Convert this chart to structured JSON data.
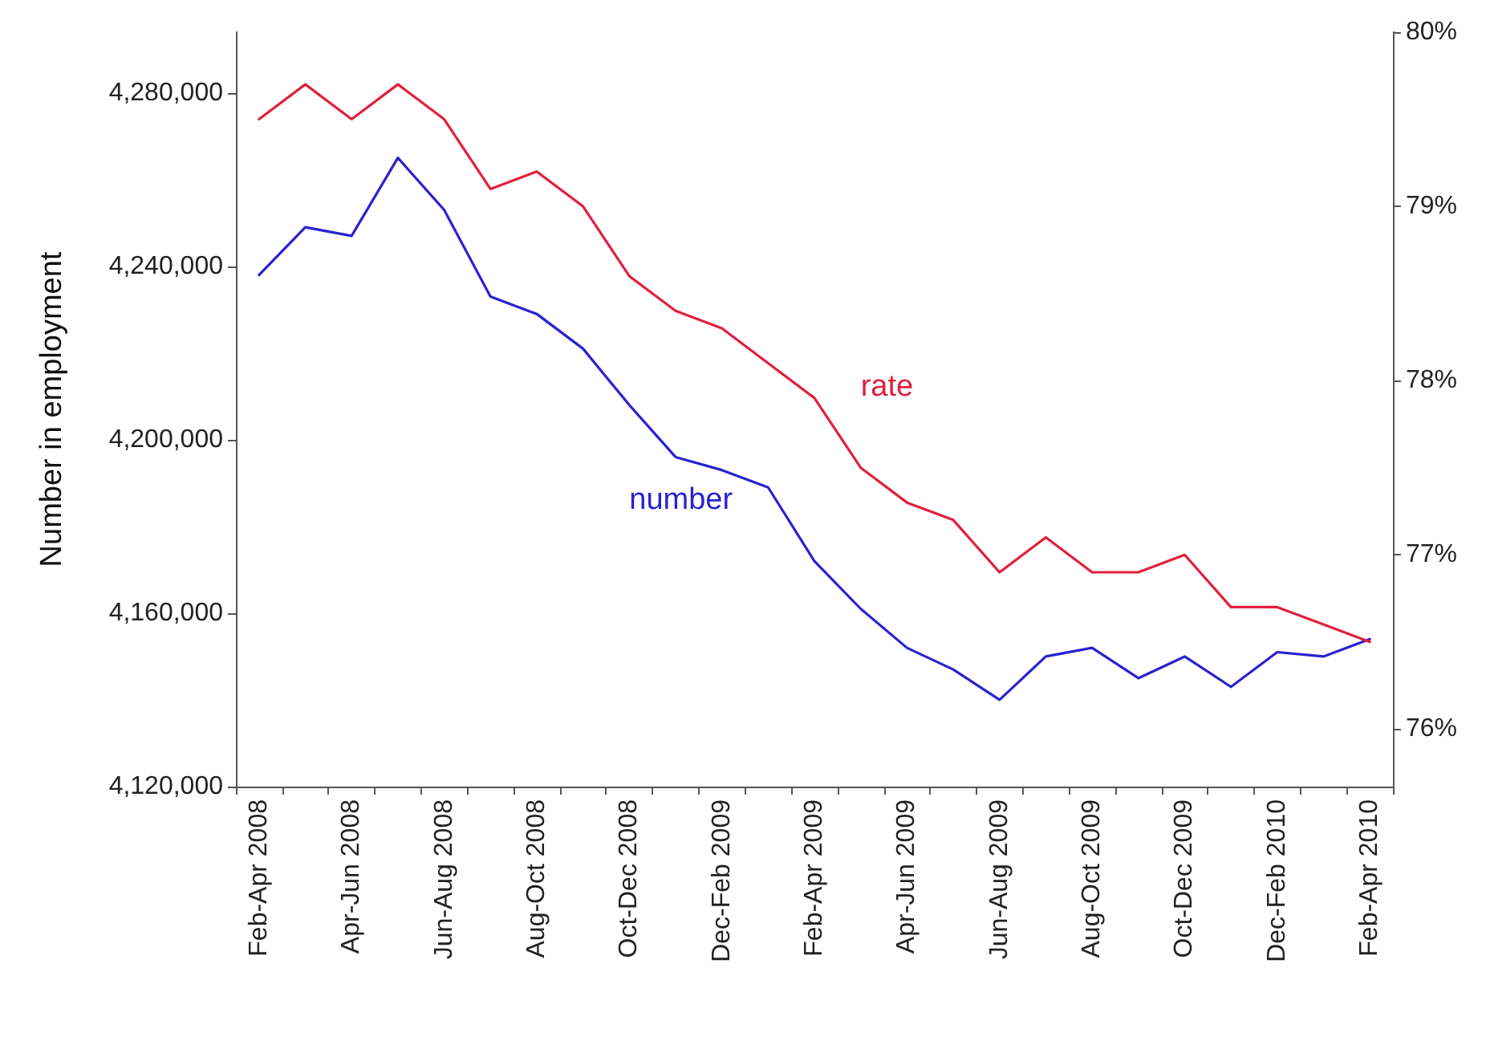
{
  "chart_data": {
    "type": "line",
    "ylabel": "Number in employment",
    "categories": [
      "Feb-Apr 2008",
      null,
      "Apr-Jun 2008",
      null,
      "Jun-Aug 2008",
      null,
      "Aug-Oct 2008",
      null,
      "Oct-Dec 2008",
      null,
      "Dec-Feb 2009",
      null,
      "Feb-Apr 2009",
      null,
      "Apr-Jun 2009",
      null,
      "Jun-Aug 2009",
      null,
      "Aug-Oct 2009",
      null,
      "Oct-Dec 2009",
      null,
      "Dec-Feb 2010",
      null,
      "Feb-Apr 2010"
    ],
    "series": [
      {
        "name": "number",
        "color": "#2a22d0",
        "values": [
          4238000,
          4249000,
          4247000,
          4265000,
          4253000,
          4233000,
          4229000,
          4221000,
          4208000,
          4196000,
          4193000,
          4189000,
          4172000,
          4161000,
          4152000,
          4147000,
          4140000,
          4150000,
          4152000,
          4145000,
          4150000,
          4143000,
          4151000,
          4150000,
          4154000
        ]
      },
      {
        "name": "rate",
        "color": "#e0203c",
        "axis": "y2",
        "values": [
          79.5,
          79.7,
          79.5,
          79.7,
          79.5,
          79.1,
          79.2,
          79.0,
          78.6,
          78.4,
          78.3,
          78.1,
          77.9,
          77.5,
          77.3,
          77.2,
          76.9,
          77.1,
          76.9,
          76.9,
          77.0,
          76.7,
          76.7,
          76.6,
          76.5
        ]
      }
    ],
    "ylim": [
      4120000,
      4294000
    ],
    "yticks": [
      {
        "value": 4120000,
        "label": "4,120,000"
      },
      {
        "value": 4160000,
        "label": "4,160,000"
      },
      {
        "value": 4200000,
        "label": "4,200,000"
      },
      {
        "value": 4240000,
        "label": "4,240,000"
      },
      {
        "value": 4280000,
        "label": "4,280,000"
      }
    ],
    "y2lim": [
      75.67,
      80
    ],
    "y2ticks": [
      {
        "value": 76,
        "label": "76%"
      },
      {
        "value": 77,
        "label": "77%"
      },
      {
        "value": 78,
        "label": "78%"
      },
      {
        "value": 79,
        "label": "79%"
      },
      {
        "value": 80,
        "label": "80%"
      }
    ],
    "grid": false,
    "legend": false,
    "marker": "none",
    "line_style": "solid"
  }
}
